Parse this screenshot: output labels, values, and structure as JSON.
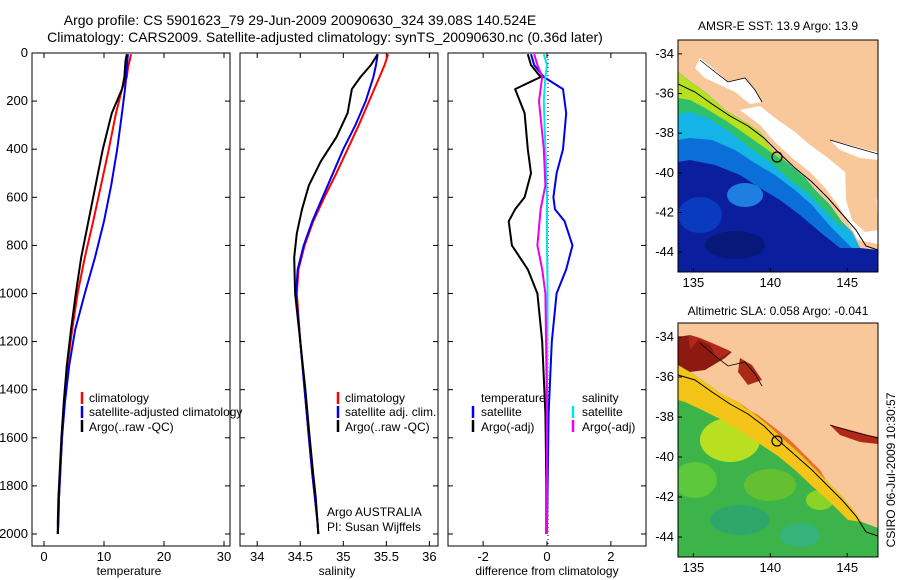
{
  "title": {
    "line1": "Argo profile: CS 5901623_79 29-Jun-2009 20090630_324 39.08S 140.524E",
    "line2": "Climatology: CARS2009. Satellite-adjusted climatology: synTS_20090630.nc (0.36d later)"
  },
  "colors": {
    "climatology": "#ff0000",
    "satellite": "#0000ee",
    "argo": "#000000",
    "satellite_salinity": "#00e5ee",
    "argo_salinity_adj": "#ee00ee",
    "land": "#f8c79a"
  },
  "chart_data": [
    {
      "type": "line",
      "xlabel": "temperature",
      "ylabel": "",
      "xlim": [
        -2,
        31
      ],
      "ylim": [
        2050,
        0
      ],
      "xticks": [
        0,
        10,
        20,
        30
      ],
      "yticks": [
        0,
        200,
        400,
        600,
        800,
        1000,
        1200,
        1400,
        1600,
        1800,
        2000
      ],
      "legend": {
        "placement": "center",
        "entries": [
          "climatology",
          "satellite-adjusted climatology",
          "Argo(..raw -QC)"
        ]
      },
      "series": [
        {
          "name": "climatology",
          "color": "#ff0000",
          "x": [
            14.5,
            14.3,
            14.0,
            13.8,
            13.0,
            12.0,
            10.8,
            9.5,
            8.2,
            6.8,
            5.6,
            4.7,
            3.9,
            3.4,
            3.0,
            2.7,
            2.5,
            2.4,
            2.3
          ],
          "y": [
            5,
            30,
            60,
            100,
            150,
            250,
            400,
            550,
            700,
            850,
            1000,
            1150,
            1300,
            1450,
            1600,
            1750,
            1850,
            1950,
            2000
          ]
        },
        {
          "name": "satellite-adjusted climatology",
          "color": "#0000ee",
          "x": [
            14.0,
            13.9,
            13.8,
            13.7,
            13.5,
            13.0,
            12.2,
            11.2,
            10.0,
            8.5,
            6.8,
            5.2,
            4.2,
            3.5,
            3.0,
            2.7,
            2.5,
            2.4,
            2.3
          ],
          "y": [
            5,
            30,
            60,
            100,
            150,
            250,
            400,
            550,
            700,
            850,
            1000,
            1150,
            1300,
            1450,
            1600,
            1750,
            1850,
            1950,
            2000
          ]
        },
        {
          "name": "Argo(..raw -QC)",
          "color": "#000000",
          "x": [
            13.8,
            13.6,
            13.5,
            13.4,
            13.0,
            11.3,
            9.8,
            8.6,
            7.4,
            6.2,
            5.3,
            4.5,
            3.8,
            3.3,
            2.9,
            2.6,
            2.4,
            2.3,
            2.3
          ],
          "y": [
            5,
            30,
            60,
            100,
            150,
            250,
            400,
            550,
            700,
            850,
            1000,
            1150,
            1300,
            1450,
            1600,
            1750,
            1850,
            1950,
            2000
          ]
        }
      ]
    },
    {
      "type": "line",
      "xlabel": "salinity",
      "ylabel": "",
      "xlim": [
        33.8,
        36.1
      ],
      "ylim": [
        2050,
        0
      ],
      "xticks": [
        34,
        34.5,
        35,
        35.5,
        36
      ],
      "yticks": [],
      "legend": {
        "placement": "center",
        "entries": [
          "climatology",
          "satellite adj. clim.",
          "Argo(..raw -QC)"
        ]
      },
      "annotations": [
        "Argo AUSTRALIA",
        "PI: Susan Wijffels"
      ],
      "series": [
        {
          "name": "climatology",
          "color": "#ff0000",
          "x": [
            35.52,
            35.48,
            35.42,
            35.3,
            35.18,
            35.05,
            34.92,
            34.78,
            34.65,
            34.55,
            34.48,
            34.46,
            34.5,
            34.55,
            34.6,
            34.64,
            34.67,
            34.7,
            34.71
          ],
          "y": [
            5,
            50,
            100,
            200,
            300,
            400,
            500,
            600,
            700,
            800,
            900,
            1000,
            1200,
            1400,
            1600,
            1750,
            1850,
            1950,
            2000
          ]
        },
        {
          "name": "satellite adj. clim.",
          "color": "#0000ee",
          "x": [
            35.4,
            35.38,
            35.35,
            35.26,
            35.14,
            35.0,
            34.88,
            34.76,
            34.64,
            34.54,
            34.47,
            34.45,
            34.5,
            34.55,
            34.6,
            34.64,
            34.67,
            34.7,
            34.71
          ],
          "y": [
            5,
            50,
            100,
            200,
            300,
            400,
            500,
            600,
            700,
            800,
            900,
            1000,
            1200,
            1400,
            1600,
            1750,
            1850,
            1950,
            2000
          ]
        },
        {
          "name": "Argo(..raw -QC)",
          "color": "#000000",
          "x": [
            35.4,
            35.32,
            35.2,
            35.1,
            35.05,
            34.92,
            34.74,
            34.6,
            34.52,
            34.46,
            34.43,
            34.44,
            34.5,
            34.56,
            34.61,
            34.65,
            34.68,
            34.7,
            34.71
          ],
          "y": [
            5,
            50,
            100,
            150,
            250,
            350,
            450,
            550,
            650,
            750,
            850,
            1000,
            1200,
            1400,
            1600,
            1750,
            1850,
            1950,
            2000
          ]
        }
      ]
    },
    {
      "type": "line",
      "xlabel": "difference from climatology",
      "ylabel": "",
      "xlim": [
        -3.1,
        3.1
      ],
      "ylim": [
        2050,
        0
      ],
      "xticks": [
        -2,
        0,
        2
      ],
      "yticks": [],
      "legend": {
        "placement": "center",
        "entries": [
          "temperature",
          "satellite",
          "Argo(-adj)",
          "salinity",
          "satellite",
          "Argo(-adj)"
        ]
      },
      "series": [
        {
          "name": "satellite",
          "group": "temperature",
          "color": "#0000ee",
          "x": [
            -0.5,
            -0.4,
            -0.1,
            0.5,
            0.6,
            0.5,
            0.3,
            0.2,
            0.25,
            0.55,
            0.8,
            0.6,
            0.3,
            0.15,
            0.05,
            0.02,
            0.0
          ],
          "y": [
            5,
            50,
            100,
            150,
            250,
            400,
            500,
            600,
            650,
            700,
            800,
            900,
            1000,
            1200,
            1500,
            1800,
            2000
          ]
        },
        {
          "name": "Argo(-adj)",
          "group": "temperature",
          "color": "#000000",
          "x": [
            -0.6,
            -0.5,
            -0.2,
            -1.0,
            -0.7,
            -0.6,
            -0.5,
            -0.7,
            -1.0,
            -1.2,
            -1.1,
            -0.6,
            -0.3,
            -0.15,
            -0.05,
            -0.02,
            -0.02
          ],
          "y": [
            5,
            50,
            100,
            150,
            250,
            400,
            500,
            600,
            650,
            700,
            800,
            900,
            1000,
            1200,
            1500,
            1800,
            2000
          ]
        },
        {
          "name": "satellite",
          "group": "salinity",
          "color": "#00e5ee",
          "x": [
            -0.1,
            0.0,
            -0.05,
            -0.1,
            -0.05,
            0.0,
            0.0,
            0.02,
            0.0,
            0.0
          ],
          "y": [
            5,
            50,
            100,
            200,
            400,
            600,
            800,
            1000,
            1500,
            2000
          ]
        },
        {
          "name": "Argo(-adj)",
          "group": "salinity",
          "color": "#ee00ee",
          "x": [
            -0.4,
            -0.3,
            -0.15,
            -0.25,
            -0.1,
            -0.05,
            -0.2,
            -0.3,
            -0.15,
            -0.05,
            0.0,
            0.0
          ],
          "y": [
            5,
            50,
            100,
            200,
            400,
            550,
            650,
            800,
            900,
            1000,
            1500,
            2000
          ]
        }
      ]
    },
    {
      "type": "heatmap",
      "title": "AMSR-E SST: 13.9 Argo: 13.9",
      "xlim": [
        134,
        147
      ],
      "ylim": [
        -45,
        -33.3
      ],
      "xticks": [
        135,
        140,
        145
      ],
      "yticks": [
        -34,
        -36,
        -38,
        -40,
        -42,
        -44
      ],
      "float_position": {
        "lon": 140.524,
        "lat": -39.08
      }
    },
    {
      "type": "heatmap",
      "title": "Altimetric SLA: 0.058 Argo: -0.041",
      "xlim": [
        134,
        147
      ],
      "ylim": [
        -45,
        -33.3
      ],
      "xticks": [
        135,
        140,
        145
      ],
      "yticks": [
        -34,
        -36,
        -38,
        -40,
        -42,
        -44
      ],
      "float_position": {
        "lon": 140.524,
        "lat": -39.08
      }
    }
  ],
  "side_caption": "CSIRO 06-Jul-2009 10:30:57"
}
